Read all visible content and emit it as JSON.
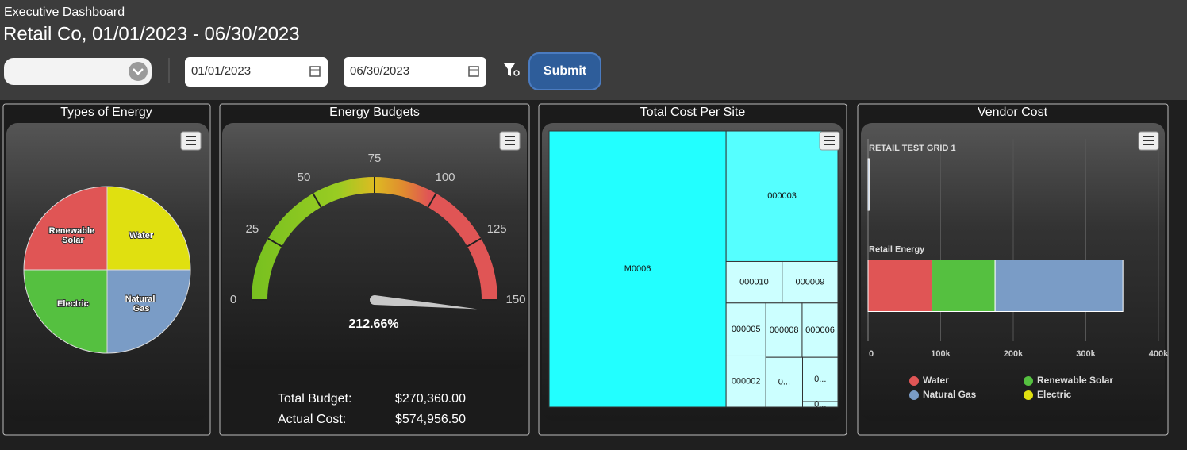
{
  "header": {
    "subtitle": "Executive Dashboard",
    "title": "Retail Co, 01/01/2023 - 06/30/2023"
  },
  "filters": {
    "start_date": "01/01/2023",
    "end_date": "06/30/2023",
    "submit": "Submit"
  },
  "chart_data": [
    {
      "type": "pie",
      "title": "Types of Energy",
      "categories": [
        "Water",
        "Natural Gas",
        "Electric",
        "Renewable Solar"
      ],
      "values": [
        25,
        25,
        25,
        25
      ],
      "colors": [
        "#e0e010",
        "#7a9cc6",
        "#55c040",
        "#e05555"
      ]
    },
    {
      "type": "gauge",
      "title": "Energy Budgets",
      "values": [
        212.66
      ],
      "value_labels": [
        "212.66%"
      ],
      "ylim": [
        0,
        150
      ],
      "yticks": [
        0,
        25,
        50,
        75,
        100,
        125,
        150
      ],
      "summary": [
        {
          "label": "Total Budget:",
          "value": "$270,360.00"
        },
        {
          "label": "Actual Cost:",
          "value": "$574,956.50"
        }
      ]
    },
    {
      "type": "treemap",
      "title": "Total Cost Per Site",
      "categories": [
        "M0006",
        "000003",
        "000010",
        "000009",
        "000005",
        "000002",
        "000008",
        "000006",
        "0...",
        "0...",
        "0..."
      ],
      "values": [
        352800,
        105300,
        16800,
        16700,
        15200,
        14700,
        14200,
        14000,
        13200,
        11300,
        1400
      ],
      "colors": [
        "#22ffff",
        "#55ffff",
        "#ccffff",
        "#ccffff",
        "#ccffff",
        "#ccffff",
        "#ccffff",
        "#ccffff",
        "#ccffff",
        "#ccffff",
        "#ccffff"
      ]
    },
    {
      "type": "hbar",
      "stacked": true,
      "title": "Vendor Cost",
      "categories": [
        "RETAIL TEST GRID 1",
        "Retail Energy"
      ],
      "series": [
        {
          "name": "Water",
          "color": "#e05555",
          "values": [
            0,
            88000
          ]
        },
        {
          "name": "Renewable Solar",
          "color": "#55c040",
          "values": [
            0,
            87000
          ]
        },
        {
          "name": "Natural Gas",
          "color": "#7a9cc6",
          "values": [
            1500,
            176000
          ]
        },
        {
          "name": "Electric",
          "color": "#e0e010",
          "values": [
            0,
            0
          ]
        }
      ],
      "xlim": [
        0,
        400000
      ],
      "xticks": [
        0,
        {
          "value": 100000,
          "label": "100k"
        },
        {
          "value": 200000,
          "label": "200k"
        },
        {
          "value": 300000,
          "label": "300k"
        },
        {
          "value": 400000,
          "label": "400k"
        }
      ],
      "grid": true
    }
  ]
}
